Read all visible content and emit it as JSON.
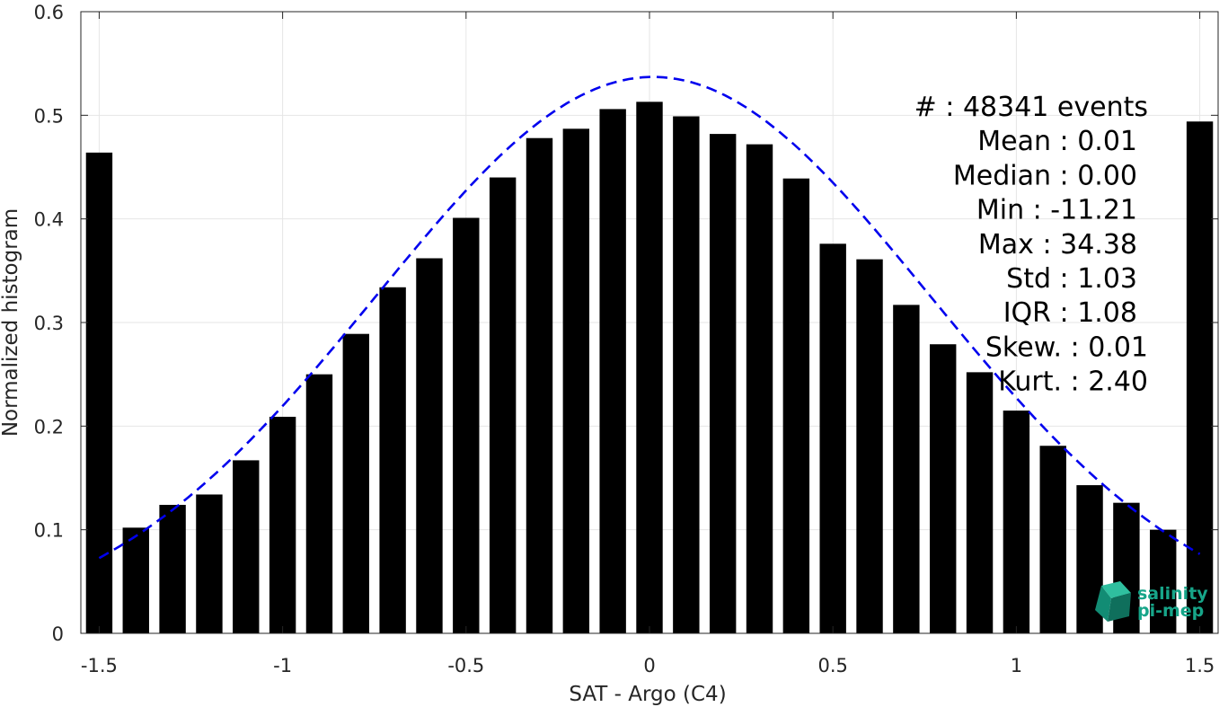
{
  "chart_data": {
    "type": "bar",
    "xlabel": "SAT - Argo (C4)",
    "ylabel": "Normalized histogram",
    "xlim": [
      -1.55,
      1.55
    ],
    "ylim": [
      0,
      0.6
    ],
    "xticks": [
      -1.5,
      -1,
      -0.5,
      0,
      0.5,
      1,
      1.5
    ],
    "xtick_labels": [
      "-1.5",
      "-1",
      "-0.5",
      "0",
      "0.5",
      "1",
      "1.5"
    ],
    "yticks": [
      0,
      0.1,
      0.2,
      0.3,
      0.4,
      0.5,
      0.6
    ],
    "ytick_labels": [
      "0",
      "0.1",
      "0.2",
      "0.3",
      "0.4",
      "0.5",
      "0.6"
    ],
    "grid": true,
    "bar_color": "#000000",
    "bin_width": 0.1,
    "bar_fraction": 0.72,
    "x": [
      -1.5,
      -1.4,
      -1.3,
      -1.2,
      -1.1,
      -1.0,
      -0.9,
      -0.8,
      -0.7,
      -0.6,
      -0.5,
      -0.4,
      -0.3,
      -0.2,
      -0.1,
      0.0,
      0.1,
      0.2,
      0.3,
      0.4,
      0.5,
      0.6,
      0.7,
      0.8,
      0.9,
      1.0,
      1.1,
      1.2,
      1.3,
      1.4,
      1.5
    ],
    "values": [
      0.464,
      0.102,
      0.124,
      0.134,
      0.167,
      0.209,
      0.25,
      0.289,
      0.334,
      0.362,
      0.401,
      0.44,
      0.478,
      0.487,
      0.506,
      0.513,
      0.499,
      0.482,
      0.472,
      0.439,
      0.376,
      0.361,
      0.317,
      0.279,
      0.252,
      0.215,
      0.181,
      0.143,
      0.126,
      0.1,
      0.494
    ],
    "fit_curve": {
      "style": "dashed",
      "color": "#0000ee",
      "mean": 0.01,
      "std": 0.755,
      "peak": 0.537,
      "x_range": [
        -1.5,
        1.5
      ]
    },
    "annotation_lines": [
      "#  : 48341 events",
      "Mean : 0.01",
      "Median : 0.00",
      "Min : -11.21",
      "Max : 34.38",
      "Std : 1.03",
      "IQR : 1.08",
      "Skew. : 0.01",
      "Kurt. : 2.40"
    ]
  },
  "logo": {
    "line1": "salinity",
    "line2": "pi-mep",
    "color": "#17a589",
    "icon": "cube-logo-icon"
  }
}
